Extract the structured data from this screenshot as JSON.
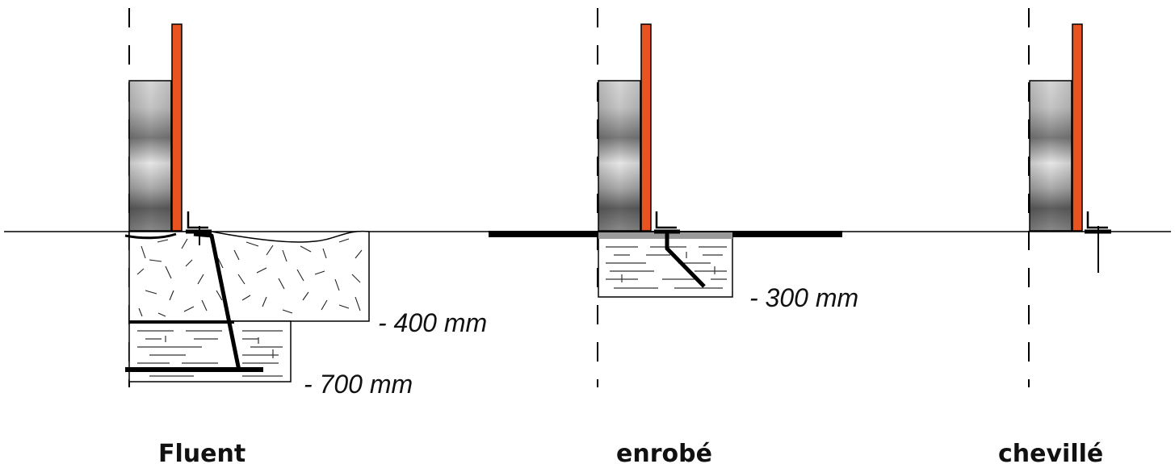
{
  "labels": {
    "depth_400": "- 400 mm",
    "depth_700": "- 700 mm",
    "depth_300": "- 300 mm",
    "caption_fluent": "Fluent",
    "caption_enrobe": "enrobé",
    "caption_cheville": "chevillé"
  },
  "colors": {
    "post_orange": "#e8531f",
    "ground_line": "#000000",
    "concrete_fill": "#ffffff",
    "slab_fill": "#000000"
  }
}
